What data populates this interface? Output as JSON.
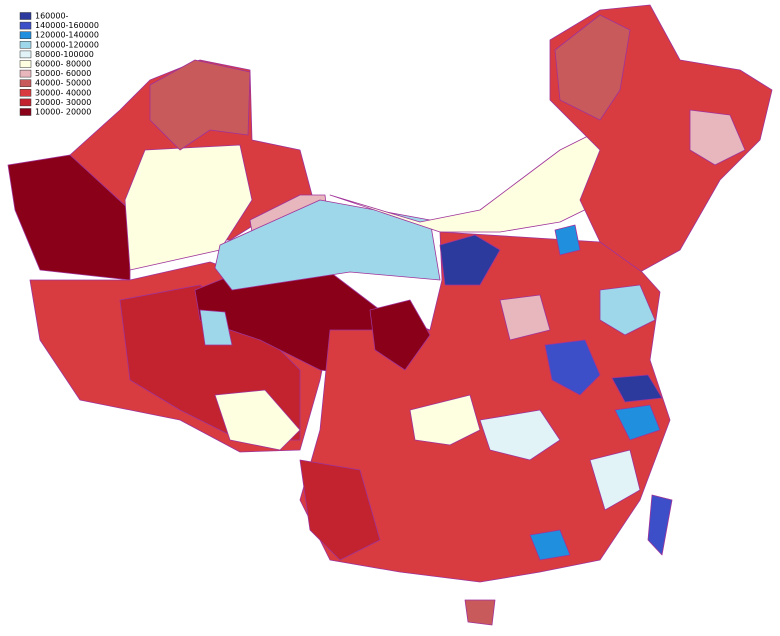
{
  "legend": {
    "items": [
      {
        "label": "160000-",
        "color": "#2b3a9c"
      },
      {
        "label": "140000-160000",
        "color": "#3c4fc8"
      },
      {
        "label": "120000-140000",
        "color": "#1f8fde"
      },
      {
        "label": "100000-120000",
        "color": "#9fd7ea"
      },
      {
        "label": "80000-100000",
        "color": "#e1f3f7"
      },
      {
        "label": "60000- 80000",
        "color": "#fefee0"
      },
      {
        "label": "50000- 60000",
        "color": "#e8b6bd"
      },
      {
        "label": "40000- 50000",
        "color": "#c95a5c"
      },
      {
        "label": "30000- 40000",
        "color": "#d83c40"
      },
      {
        "label": "20000- 30000",
        "color": "#c2232f"
      },
      {
        "label": "10000- 20000",
        "color": "#8a0018"
      }
    ]
  }
}
